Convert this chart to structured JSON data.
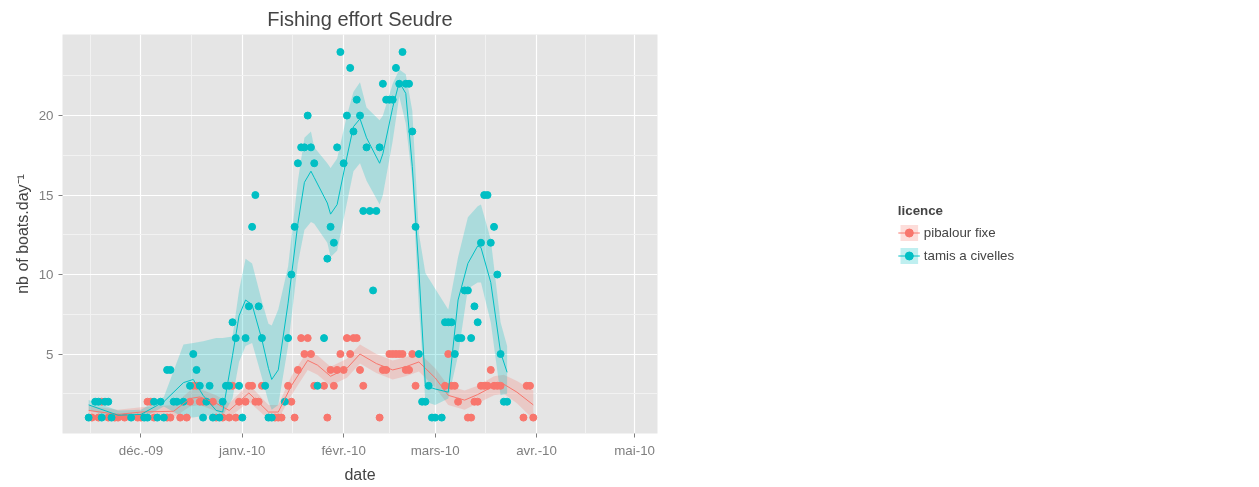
{
  "chart_data": {
    "type": "scatter",
    "title": "Fishing effort Seudre",
    "xlabel": "date",
    "ylabel": "nb of boats.day⁻¹",
    "legend_title": "licence",
    "xlim": [
      "2009-11-07",
      "2010-05-08"
    ],
    "ylim": [
      0,
      25.1
    ],
    "xticks": [
      {
        "value": "2009-12-01",
        "label": "déc.-09"
      },
      {
        "value": "2010-01-01",
        "label": "janv.-10"
      },
      {
        "value": "2010-02-01",
        "label": "févr.-10"
      },
      {
        "value": "2010-03-01",
        "label": "mars-10"
      },
      {
        "value": "2010-04-01",
        "label": "avr.-10"
      },
      {
        "value": "2010-05-01",
        "label": "mai-10"
      }
    ],
    "yticks": [
      5,
      10,
      15,
      20
    ],
    "grid": true,
    "legend": "right",
    "marker": "circle",
    "series": [
      {
        "name": "pibalour fixe",
        "color": "#f8766d",
        "x": [
          "2009-11-16",
          "2009-11-18",
          "2009-11-19",
          "2009-11-21",
          "2009-11-23",
          "2009-11-24",
          "2009-11-26",
          "2009-11-30",
          "2009-12-01",
          "2009-12-03",
          "2009-12-04",
          "2009-12-05",
          "2009-12-09",
          "2009-12-10",
          "2009-12-13",
          "2009-12-15",
          "2009-12-16",
          "2009-12-17",
          "2009-12-18",
          "2009-12-19",
          "2009-12-20",
          "2009-12-23",
          "2009-12-24",
          "2009-12-26",
          "2009-12-28",
          "2009-12-29",
          "2009-12-30",
          "2009-12-31",
          "2010-01-02",
          "2010-01-03",
          "2010-01-04",
          "2010-01-05",
          "2010-01-06",
          "2010-01-07",
          "2010-01-11",
          "2010-01-12",
          "2010-01-13",
          "2010-01-15",
          "2010-01-16",
          "2010-01-17",
          "2010-01-18",
          "2010-01-19",
          "2010-01-20",
          "2010-01-21",
          "2010-01-22",
          "2010-01-23",
          "2010-01-26",
          "2010-01-27",
          "2010-01-28",
          "2010-01-29",
          "2010-01-30",
          "2010-01-31",
          "2010-02-01",
          "2010-02-02",
          "2010-02-03",
          "2010-02-04",
          "2010-02-05",
          "2010-02-06",
          "2010-02-07",
          "2010-02-12",
          "2010-02-13",
          "2010-02-14",
          "2010-02-15",
          "2010-02-16",
          "2010-02-17",
          "2010-02-18",
          "2010-02-19",
          "2010-02-20",
          "2010-02-21",
          "2010-02-22",
          "2010-02-23",
          "2010-03-04",
          "2010-03-05",
          "2010-03-06",
          "2010-03-07",
          "2010-03-08",
          "2010-03-11",
          "2010-03-12",
          "2010-03-13",
          "2010-03-14",
          "2010-03-15",
          "2010-03-16",
          "2010-03-17",
          "2010-03-18",
          "2010-03-19",
          "2010-03-20",
          "2010-03-21",
          "2010-03-28",
          "2010-03-29",
          "2010-03-30",
          "2010-03-31"
        ],
        "values": [
          1,
          1,
          2,
          1,
          1,
          1,
          1,
          1,
          1,
          2,
          2,
          1,
          1,
          1,
          1,
          1,
          2,
          3,
          3,
          2,
          2,
          2,
          1,
          1,
          1,
          3,
          1,
          2,
          2,
          3,
          3,
          2,
          2,
          3,
          1,
          1,
          1,
          3,
          2,
          1,
          4,
          6,
          5,
          6,
          5,
          3,
          3,
          1,
          4,
          3,
          4,
          5,
          4,
          6,
          5,
          6,
          6,
          4,
          3,
          1,
          4,
          4,
          5,
          5,
          5,
          5,
          5,
          4,
          4,
          5,
          3,
          3,
          5,
          3,
          3,
          2,
          1,
          1,
          2,
          2,
          3,
          3,
          3,
          4,
          3,
          3,
          3,
          1,
          3,
          3,
          1
        ]
      },
      {
        "name": "tamis a civelles",
        "color": "#00bfc4",
        "x": [
          "2009-11-15",
          "2009-11-17",
          "2009-11-18",
          "2009-11-19",
          "2009-11-20",
          "2009-11-21",
          "2009-11-22",
          "2009-11-28",
          "2009-12-02",
          "2009-12-03",
          "2009-12-05",
          "2009-12-06",
          "2009-12-07",
          "2009-12-08",
          "2009-12-09",
          "2009-12-10",
          "2009-12-11",
          "2009-12-12",
          "2009-12-14",
          "2009-12-16",
          "2009-12-17",
          "2009-12-18",
          "2009-12-19",
          "2009-12-20",
          "2009-12-21",
          "2009-12-22",
          "2009-12-23",
          "2009-12-25",
          "2009-12-26",
          "2009-12-27",
          "2009-12-28",
          "2009-12-29",
          "2009-12-30",
          "2009-12-31",
          "2010-01-01",
          "2010-01-02",
          "2010-01-03",
          "2010-01-04",
          "2010-01-05",
          "2010-01-06",
          "2010-01-07",
          "2010-01-08",
          "2010-01-09",
          "2010-01-10",
          "2010-01-14",
          "2010-01-15",
          "2010-01-16",
          "2010-01-17",
          "2010-01-18",
          "2010-01-19",
          "2010-01-20",
          "2010-01-21",
          "2010-01-22",
          "2010-01-23",
          "2010-01-24",
          "2010-01-26",
          "2010-01-27",
          "2010-01-28",
          "2010-01-29",
          "2010-01-30",
          "2010-01-31",
          "2010-02-01",
          "2010-02-02",
          "2010-02-03",
          "2010-02-04",
          "2010-02-05",
          "2010-02-06",
          "2010-02-07",
          "2010-02-08",
          "2010-02-09",
          "2010-02-10",
          "2010-02-11",
          "2010-02-12",
          "2010-02-13",
          "2010-02-14",
          "2010-02-15",
          "2010-02-16",
          "2010-02-17",
          "2010-02-18",
          "2010-02-19",
          "2010-02-20",
          "2010-02-21",
          "2010-02-22",
          "2010-02-23",
          "2010-02-24",
          "2010-02-25",
          "2010-02-26",
          "2010-02-27",
          "2010-02-28",
          "2010-03-01",
          "2010-03-03",
          "2010-03-04",
          "2010-03-05",
          "2010-03-06",
          "2010-03-07",
          "2010-03-08",
          "2010-03-09",
          "2010-03-10",
          "2010-03-11",
          "2010-03-12",
          "2010-03-13",
          "2010-03-14",
          "2010-03-15",
          "2010-03-16",
          "2010-03-17",
          "2010-03-18",
          "2010-03-19",
          "2010-03-20",
          "2010-03-21",
          "2010-03-22",
          "2010-03-23"
        ],
        "values": [
          1,
          2,
          2,
          1,
          2,
          2,
          1,
          1,
          1,
          1,
          2,
          1,
          2,
          1,
          4,
          4,
          2,
          2,
          2,
          3,
          5,
          4,
          3,
          1,
          2,
          3,
          1,
          1,
          2,
          3,
          3,
          7,
          6,
          3,
          1,
          6,
          8,
          13,
          15,
          8,
          6,
          3,
          1,
          1,
          2,
          6,
          10,
          13,
          17,
          18,
          18,
          20,
          18,
          17,
          3,
          6,
          11,
          13,
          12,
          18,
          24,
          17,
          20,
          23,
          19,
          21,
          20,
          14,
          18,
          14,
          9,
          14,
          18,
          22,
          21,
          21,
          21,
          23,
          22,
          24,
          22,
          22,
          19,
          13,
          5,
          2,
          2,
          3,
          1,
          1,
          1,
          7,
          7,
          7,
          5,
          6,
          6,
          9,
          9,
          6,
          8,
          7,
          12,
          15,
          15,
          12,
          13,
          10,
          5,
          2,
          2
        ]
      },
      {
        "type": "line",
        "color": "#f8766d",
        "line_style": "solid",
        "marker": "none",
        "x": [
          "2009-11-15",
          "2009-11-24",
          "2009-12-01",
          "2009-12-11",
          "2009-12-16",
          "2009-12-19",
          "2009-12-24",
          "2009-12-28",
          "2010-01-03",
          "2010-01-09",
          "2010-01-12",
          "2010-01-16",
          "2010-01-21",
          "2010-01-24",
          "2010-01-28",
          "2010-02-02",
          "2010-02-06",
          "2010-02-11",
          "2010-02-16",
          "2010-02-20",
          "2010-02-24",
          "2010-03-01",
          "2010-03-05",
          "2010-03-10",
          "2010-03-14",
          "2010-03-19",
          "2010-03-22",
          "2010-03-26",
          "2010-03-31"
        ],
        "values": [
          1.45,
          1.2,
          1.35,
          1.4,
          2.2,
          2.3,
          1.9,
          1.45,
          2.55,
          1.35,
          1.35,
          3.0,
          4.6,
          4.3,
          3.6,
          4.1,
          5.0,
          4.4,
          4.0,
          4.2,
          4.5,
          3.5,
          2.4,
          2.1,
          2.45,
          3.0,
          3.1,
          2.6,
          1.8
        ],
        "lower": [
          1.15,
          0.9,
          1.05,
          1.0,
          1.7,
          1.8,
          1.4,
          1.0,
          2.0,
          0.9,
          0.9,
          2.4,
          4.0,
          3.7,
          3.0,
          3.5,
          4.4,
          3.8,
          3.4,
          3.6,
          3.9,
          2.9,
          1.8,
          1.5,
          1.9,
          2.4,
          2.5,
          1.9,
          0.9
        ],
        "upper": [
          1.75,
          1.5,
          1.65,
          1.8,
          2.7,
          2.8,
          2.4,
          1.9,
          3.1,
          1.8,
          1.8,
          3.6,
          5.2,
          4.9,
          4.2,
          4.7,
          5.6,
          5.0,
          4.6,
          4.8,
          5.1,
          4.1,
          3.0,
          2.7,
          3.0,
          3.6,
          3.7,
          3.3,
          2.7
        ]
      },
      {
        "type": "line",
        "color": "#00bfc4",
        "line_style": "solid",
        "marker": "none",
        "x": [
          "2009-11-15",
          "2009-11-24",
          "2009-12-01",
          "2009-12-08",
          "2009-12-14",
          "2009-12-17",
          "2009-12-20",
          "2009-12-24",
          "2009-12-26",
          "2009-12-29",
          "2009-12-31",
          "2010-01-02",
          "2010-01-04",
          "2010-01-07",
          "2010-01-09",
          "2010-01-10",
          "2010-01-12",
          "2010-01-15",
          "2010-01-18",
          "2010-01-20",
          "2010-01-22",
          "2010-01-23",
          "2010-01-27",
          "2010-01-28",
          "2010-01-30",
          "2010-02-02",
          "2010-02-04",
          "2010-02-06",
          "2010-02-08",
          "2010-02-12",
          "2010-02-13",
          "2010-02-16",
          "2010-02-18",
          "2010-02-20",
          "2010-02-22",
          "2010-02-24",
          "2010-02-26",
          "2010-03-01",
          "2010-03-05",
          "2010-03-08",
          "2010-03-11",
          "2010-03-14",
          "2010-03-15",
          "2010-03-18",
          "2010-03-21",
          "2010-03-23"
        ],
        "values": [
          1.8,
          1.15,
          1.2,
          2.0,
          3.2,
          3.4,
          2.4,
          1.45,
          1.35,
          4.9,
          7.4,
          8.4,
          8.1,
          5.9,
          4.1,
          3.4,
          4.0,
          8.2,
          13.2,
          15.8,
          16.5,
          16.1,
          14.5,
          13.8,
          14.4,
          17.4,
          19.3,
          19.8,
          18.6,
          17.0,
          17.6,
          20.5,
          22.1,
          21.4,
          16.8,
          10.3,
          3.0,
          2.8,
          2.6,
          8.4,
          10.7,
          11.8,
          11.7,
          9.5,
          5.1,
          3.85
        ],
        "lower": [
          1.5,
          0.85,
          0.9,
          1.7,
          1.0,
          1.0,
          1.1,
          1.2,
          1.1,
          2.2,
          4.5,
          5.5,
          5.7,
          3.5,
          2.0,
          1.5,
          1.8,
          5.5,
          10.7,
          12.8,
          13.3,
          13.2,
          12.0,
          11.1,
          11.5,
          14.5,
          16.5,
          17.0,
          15.9,
          14.4,
          15.0,
          18.4,
          21.2,
          19.5,
          15.9,
          8.0,
          2.0,
          1.8,
          2.2,
          4.9,
          9.1,
          9.5,
          9.5,
          7.0,
          2.4,
          2.5
        ],
        "upper": [
          2.1,
          1.45,
          1.5,
          2.3,
          5.6,
          5.7,
          5.8,
          6.0,
          6.0,
          6.1,
          9.0,
          11.0,
          10.7,
          8.3,
          6.9,
          6.8,
          7.8,
          10.5,
          15.9,
          18.6,
          19.0,
          18.0,
          17.0,
          16.7,
          17.3,
          20.0,
          21.5,
          22.1,
          20.5,
          19.7,
          20.0,
          22.0,
          22.9,
          22.6,
          20.3,
          12.6,
          10.1,
          9.1,
          7.8,
          11.1,
          13.6,
          14.3,
          14.4,
          12.2,
          7.0,
          5.5
        ]
      }
    ]
  }
}
